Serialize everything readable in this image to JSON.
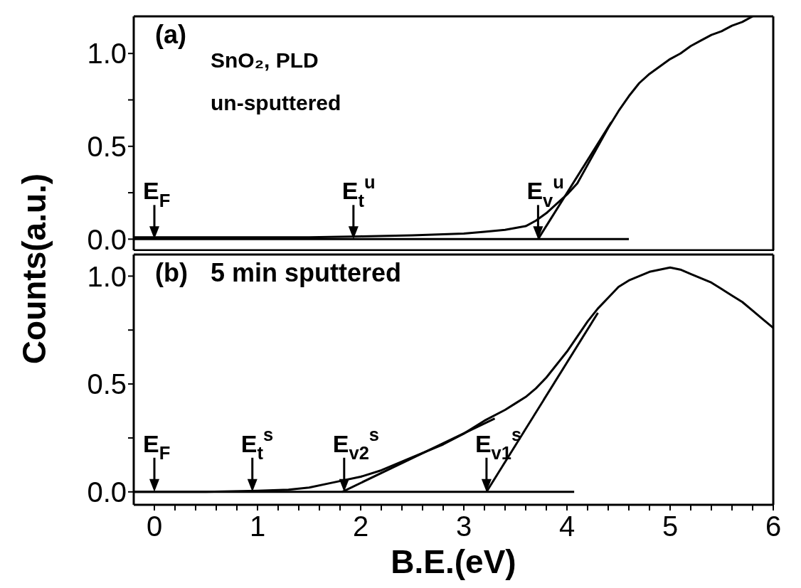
{
  "chart_data": [
    {
      "type": "line",
      "ylabel": "Counts(a.u.)",
      "tick_labels": "y",
      "xlim": [
        -0.2,
        6
      ],
      "ylim": [
        -0.06,
        1.2
      ],
      "xticks": [
        {
          "value": 0,
          "label": null
        },
        {
          "value": 0.2,
          "label": null
        },
        {
          "value": 0.4,
          "label": null
        },
        {
          "value": 0.6,
          "label": null
        },
        {
          "value": 0.8,
          "label": null
        },
        {
          "value": 1,
          "label": null
        },
        {
          "value": 1.2,
          "label": null
        },
        {
          "value": 1.4,
          "label": null
        },
        {
          "value": 1.6,
          "label": null
        },
        {
          "value": 1.8,
          "label": null
        },
        {
          "value": 2,
          "label": null
        },
        {
          "value": 2.2,
          "label": null
        },
        {
          "value": 2.4,
          "label": null
        },
        {
          "value": 2.6,
          "label": null
        },
        {
          "value": 2.8,
          "label": null
        },
        {
          "value": 3,
          "label": null
        },
        {
          "value": 3.2,
          "label": null
        },
        {
          "value": 3.4,
          "label": null
        },
        {
          "value": 3.6,
          "label": null
        },
        {
          "value": 3.8,
          "label": null
        },
        {
          "value": 4,
          "label": null
        },
        {
          "value": 4.2,
          "label": null
        },
        {
          "value": 4.4,
          "label": null
        },
        {
          "value": 4.6,
          "label": null
        },
        {
          "value": 4.8,
          "label": null
        },
        {
          "value": 5,
          "label": null
        },
        {
          "value": 5.2,
          "label": null
        },
        {
          "value": 5.4,
          "label": null
        },
        {
          "value": 5.6,
          "label": null
        },
        {
          "value": 5.8,
          "label": null
        },
        {
          "value": 6,
          "label": null
        }
      ],
      "yticks": [
        {
          "value": 0,
          "label": "0.0"
        },
        {
          "value": 0.25,
          "label": null
        },
        {
          "value": 0.5,
          "label": "0.5"
        },
        {
          "value": 0.75,
          "label": null
        },
        {
          "value": 1,
          "label": "1.0"
        }
      ],
      "series": [
        {
          "color": "#000000",
          "x": [
            -0.2,
            0.5,
            1,
            1.5,
            2,
            2.5,
            3,
            3.2,
            3.4,
            3.6,
            3.7,
            3.8,
            3.9,
            4,
            4.1,
            4.2,
            4.3,
            4.4,
            4.5,
            4.6,
            4.7,
            4.8,
            4.9,
            5,
            5.1,
            5.2,
            5.3,
            5.4,
            5.5,
            5.6,
            5.7,
            5.8
          ],
          "values": [
            0.01,
            0.01,
            0.01,
            0.01,
            0.015,
            0.02,
            0.03,
            0.04,
            0.05,
            0.07,
            0.1,
            0.14,
            0.19,
            0.24,
            0.3,
            0.4,
            0.5,
            0.6,
            0.69,
            0.77,
            0.84,
            0.89,
            0.93,
            0.97,
            1.0,
            1.04,
            1.07,
            1.1,
            1.12,
            1.15,
            1.17,
            1.2
          ]
        },
        {
          "color": "#000000",
          "x": [
            3.72,
            4.43
          ],
          "values": [
            0,
            0.63
          ]
        },
        {
          "color": "#000000",
          "x": [
            -0.2,
            4.6
          ],
          "values": [
            0,
            0
          ]
        }
      ],
      "annotations": [
        "(a)",
        "SnO₂, PLD",
        "un-sputtered",
        {
          "text": "E$_{F}$",
          "x": 0,
          "y": 0
        },
        {
          "text": "E$_{t}$$^{u}$",
          "x": 1.93,
          "y": 0
        },
        {
          "text": "E$_{v}$$^{u}$",
          "x": 3.72,
          "y": 0
        }
      ]
    },
    {
      "type": "line",
      "xlabel": "B.E.(eV)",
      "xlim": [
        -0.2,
        6
      ],
      "ylim": [
        -0.06,
        1.1
      ],
      "xticks": [
        0,
        {
          "value": 0.2,
          "label": null
        },
        {
          "value": 0.4,
          "label": null
        },
        {
          "value": 0.6,
          "label": null
        },
        {
          "value": 0.8,
          "label": null
        },
        1,
        {
          "value": 1.2,
          "label": null
        },
        {
          "value": 1.4,
          "label": null
        },
        {
          "value": 1.6,
          "label": null
        },
        {
          "value": 1.8,
          "label": null
        },
        2,
        {
          "value": 2.2,
          "label": null
        },
        {
          "value": 2.4,
          "label": null
        },
        {
          "value": 2.6,
          "label": null
        },
        {
          "value": 2.8,
          "label": null
        },
        3,
        {
          "value": 3.2,
          "label": null
        },
        {
          "value": 3.4,
          "label": null
        },
        {
          "value": 3.6,
          "label": null
        },
        {
          "value": 3.8,
          "label": null
        },
        4,
        {
          "value": 4.2,
          "label": null
        },
        {
          "value": 4.4,
          "label": null
        },
        {
          "value": 4.6,
          "label": null
        },
        {
          "value": 4.8,
          "label": null
        },
        5,
        {
          "value": 5.2,
          "label": null
        },
        {
          "value": 5.4,
          "label": null
        },
        {
          "value": 5.6,
          "label": null
        },
        {
          "value": 5.8,
          "label": null
        },
        6
      ],
      "yticks": [
        {
          "value": 0,
          "label": "0.0"
        },
        {
          "value": 0.25,
          "label": null
        },
        {
          "value": 0.5,
          "label": "0.5"
        },
        {
          "value": 0.75,
          "label": null
        },
        {
          "value": 1,
          "label": "1.0"
        }
      ],
      "series": [
        {
          "color": "#000000",
          "x": [
            -0.2,
            0.5,
            1,
            1.3,
            1.5,
            1.7,
            2,
            2.2,
            2.5,
            2.8,
            3,
            3.2,
            3.4,
            3.5,
            3.6,
            3.7,
            3.8,
            3.9,
            4,
            4.1,
            4.2,
            4.3,
            4.4,
            4.5,
            4.6,
            4.7,
            4.8,
            4.9,
            5,
            5.1,
            5.2,
            5.3,
            5.4,
            5.5,
            5.6,
            5.7,
            5.8,
            5.9,
            6
          ],
          "values": [
            0,
            0,
            0.005,
            0.01,
            0.02,
            0.04,
            0.07,
            0.1,
            0.16,
            0.22,
            0.27,
            0.33,
            0.38,
            0.41,
            0.44,
            0.48,
            0.53,
            0.59,
            0.65,
            0.72,
            0.79,
            0.85,
            0.9,
            0.95,
            0.98,
            1.0,
            1.02,
            1.03,
            1.04,
            1.03,
            1.01,
            0.99,
            0.97,
            0.94,
            0.91,
            0.88,
            0.84,
            0.8,
            0.76
          ]
        },
        {
          "color": "#000000",
          "x": [
            1.82,
            3.3
          ],
          "values": [
            0,
            0.34
          ]
        },
        {
          "color": "#000000",
          "x": [
            3.22,
            4.3
          ],
          "values": [
            0,
            0.83
          ]
        },
        {
          "color": "#000000",
          "x": [
            -0.2,
            4.07
          ],
          "values": [
            0,
            0
          ]
        }
      ],
      "annotations": [
        "(b)",
        "5 min sputtered",
        {
          "text": "E$_{F}$",
          "x": 0,
          "y": 0
        },
        {
          "text": "E$_{t}$$^{s}$",
          "x": 0.95,
          "y": 0
        },
        {
          "text": "E$_{v2}$$^{s}$",
          "x": 1.84,
          "y": 0
        },
        {
          "text": "E$_{v1}$$^{s}$",
          "x": 3.22,
          "y": 0
        }
      ]
    }
  ]
}
